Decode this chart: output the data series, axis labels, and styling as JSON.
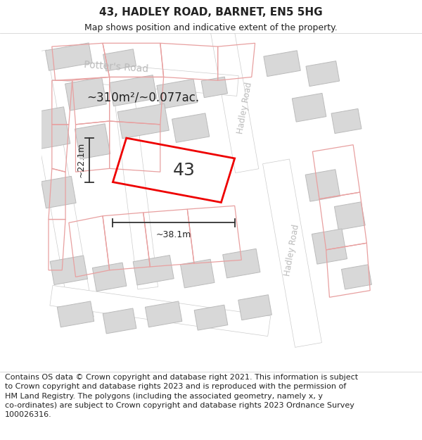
{
  "title": "43, HADLEY ROAD, BARNET, EN5 5HG",
  "subtitle": "Map shows position and indicative extent of the property.",
  "footer": "Contains OS data © Crown copyright and database right 2021. This information is subject\nto Crown copyright and database rights 2023 and is reproduced with the permission of\nHM Land Registry. The polygons (including the associated geometry, namely x, y\nco-ordinates) are subject to Crown copyright and database rights 2023 Ordnance Survey\n100026316.",
  "map_bg": "#f0f0f0",
  "road_color": "#ffffff",
  "road_edge": "#cccccc",
  "bld_fill": "#d8d8d8",
  "bld_edge": "#bbbbbb",
  "plot_color": "#e8a0a0",
  "highlight_color": "#ee0000",
  "dim_color": "#333333",
  "road_label_color": "#bbbbbb",
  "text_color": "#222222",
  "area_text": "~310m²/~0.077ac.",
  "plot_number": "43",
  "dim_width_label": "~38.1m",
  "dim_height_label": "~22.1m",
  "potters_road": "Potter's Road",
  "hadley_road": "Hadley Road",
  "title_fontsize": 11,
  "subtitle_fontsize": 9,
  "footer_fontsize": 8
}
